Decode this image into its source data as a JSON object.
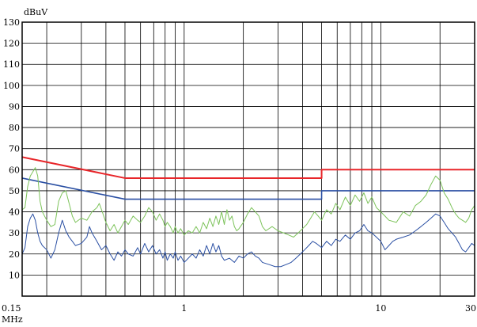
{
  "chart_data": {
    "type": "line",
    "title": "",
    "xlabel": "MHz",
    "ylabel": "dBuV",
    "x_scale": "log",
    "xlim": [
      0.15,
      30
    ],
    "ylim": [
      0,
      130
    ],
    "grid": true,
    "x_tick_labels": [
      {
        "value": 0.15,
        "label": "0.15"
      },
      {
        "value": 1,
        "label": "1"
      },
      {
        "value": 10,
        "label": "10"
      },
      {
        "value": 30,
        "label": "30"
      }
    ],
    "y_ticks": [
      10,
      20,
      30,
      40,
      50,
      60,
      70,
      80,
      90,
      100,
      110,
      120,
      130
    ],
    "series": [
      {
        "color": "#e8262a",
        "width": 2,
        "style": "limit",
        "points": [
          [
            0.15,
            66
          ],
          [
            0.5,
            56
          ],
          [
            5,
            56
          ],
          [
            5,
            60
          ],
          [
            30,
            60
          ]
        ]
      },
      {
        "color": "#2a4fa3",
        "width": 1.6,
        "style": "limit",
        "points": [
          [
            0.15,
            56
          ],
          [
            0.5,
            46
          ],
          [
            5,
            46
          ],
          [
            5,
            50
          ],
          [
            30,
            50
          ]
        ]
      },
      {
        "color": "#7dc35b",
        "width": 1,
        "style": "measured",
        "points": [
          [
            0.15,
            41
          ],
          [
            0.155,
            42
          ],
          [
            0.16,
            52
          ],
          [
            0.165,
            57
          ],
          [
            0.17,
            59
          ],
          [
            0.175,
            61
          ],
          [
            0.18,
            57
          ],
          [
            0.185,
            45
          ],
          [
            0.19,
            40
          ],
          [
            0.2,
            36
          ],
          [
            0.21,
            33
          ],
          [
            0.22,
            34
          ],
          [
            0.23,
            45
          ],
          [
            0.24,
            49
          ],
          [
            0.25,
            50
          ],
          [
            0.26,
            44
          ],
          [
            0.27,
            38
          ],
          [
            0.28,
            35
          ],
          [
            0.3,
            37
          ],
          [
            0.32,
            36
          ],
          [
            0.34,
            40
          ],
          [
            0.36,
            42
          ],
          [
            0.37,
            44
          ],
          [
            0.38,
            41
          ],
          [
            0.4,
            35
          ],
          [
            0.42,
            31
          ],
          [
            0.44,
            34
          ],
          [
            0.46,
            30
          ],
          [
            0.48,
            33
          ],
          [
            0.5,
            36
          ],
          [
            0.52,
            34
          ],
          [
            0.55,
            38
          ],
          [
            0.58,
            36
          ],
          [
            0.6,
            35
          ],
          [
            0.63,
            38
          ],
          [
            0.66,
            42
          ],
          [
            0.69,
            40
          ],
          [
            0.72,
            36
          ],
          [
            0.75,
            39
          ],
          [
            0.78,
            36
          ],
          [
            0.8,
            33
          ],
          [
            0.82,
            35
          ],
          [
            0.85,
            33
          ],
          [
            0.88,
            30
          ],
          [
            0.9,
            33
          ],
          [
            0.93,
            30
          ],
          [
            0.96,
            32
          ],
          [
            1.0,
            29
          ],
          [
            1.05,
            31
          ],
          [
            1.1,
            30
          ],
          [
            1.15,
            33
          ],
          [
            1.2,
            30
          ],
          [
            1.25,
            35
          ],
          [
            1.3,
            32
          ],
          [
            1.35,
            37
          ],
          [
            1.4,
            33
          ],
          [
            1.45,
            38
          ],
          [
            1.5,
            34
          ],
          [
            1.55,
            40
          ],
          [
            1.6,
            34
          ],
          [
            1.65,
            41
          ],
          [
            1.7,
            36
          ],
          [
            1.75,
            38
          ],
          [
            1.8,
            33
          ],
          [
            1.85,
            31
          ],
          [
            1.9,
            32
          ],
          [
            2.0,
            35
          ],
          [
            2.1,
            39
          ],
          [
            2.2,
            42
          ],
          [
            2.3,
            40
          ],
          [
            2.4,
            38
          ],
          [
            2.5,
            33
          ],
          [
            2.6,
            31
          ],
          [
            2.8,
            33
          ],
          [
            3.0,
            31
          ],
          [
            3.2,
            30
          ],
          [
            3.4,
            29
          ],
          [
            3.6,
            28
          ],
          [
            3.8,
            30
          ],
          [
            4.0,
            32
          ],
          [
            4.2,
            34
          ],
          [
            4.4,
            37
          ],
          [
            4.6,
            40
          ],
          [
            4.8,
            38
          ],
          [
            5.0,
            36
          ],
          [
            5.3,
            41
          ],
          [
            5.6,
            39
          ],
          [
            5.9,
            44
          ],
          [
            6.2,
            41
          ],
          [
            6.6,
            47
          ],
          [
            7.0,
            43
          ],
          [
            7.4,
            48
          ],
          [
            7.8,
            45
          ],
          [
            8.2,
            49
          ],
          [
            8.6,
            44
          ],
          [
            9.0,
            47
          ],
          [
            9.5,
            42
          ],
          [
            10,
            40
          ],
          [
            10.5,
            38
          ],
          [
            11,
            36
          ],
          [
            12,
            35
          ],
          [
            13,
            40
          ],
          [
            14,
            38
          ],
          [
            15,
            43
          ],
          [
            16,
            45
          ],
          [
            17,
            48
          ],
          [
            18,
            53
          ],
          [
            19,
            57
          ],
          [
            20,
            55
          ],
          [
            21,
            49
          ],
          [
            22,
            46
          ],
          [
            23,
            42
          ],
          [
            24,
            39
          ],
          [
            25,
            37
          ],
          [
            26,
            36
          ],
          [
            27,
            35
          ],
          [
            28,
            37
          ],
          [
            29,
            41
          ],
          [
            30,
            43
          ]
        ]
      },
      {
        "color": "#2a4fa3",
        "width": 1,
        "style": "measured",
        "points": [
          [
            0.15,
            20
          ],
          [
            0.155,
            23
          ],
          [
            0.16,
            33
          ],
          [
            0.165,
            37
          ],
          [
            0.17,
            39
          ],
          [
            0.175,
            36
          ],
          [
            0.18,
            30
          ],
          [
            0.185,
            26
          ],
          [
            0.19,
            24
          ],
          [
            0.2,
            22
          ],
          [
            0.21,
            18
          ],
          [
            0.22,
            22
          ],
          [
            0.23,
            30
          ],
          [
            0.24,
            36
          ],
          [
            0.25,
            31
          ],
          [
            0.26,
            28
          ],
          [
            0.27,
            26
          ],
          [
            0.28,
            24
          ],
          [
            0.3,
            25
          ],
          [
            0.32,
            28
          ],
          [
            0.33,
            33
          ],
          [
            0.34,
            30
          ],
          [
            0.36,
            26
          ],
          [
            0.38,
            22
          ],
          [
            0.4,
            24
          ],
          [
            0.42,
            20
          ],
          [
            0.44,
            17
          ],
          [
            0.46,
            21
          ],
          [
            0.48,
            19
          ],
          [
            0.5,
            22
          ],
          [
            0.52,
            20
          ],
          [
            0.55,
            19
          ],
          [
            0.58,
            23
          ],
          [
            0.6,
            20
          ],
          [
            0.63,
            25
          ],
          [
            0.66,
            21
          ],
          [
            0.69,
            24
          ],
          [
            0.72,
            20
          ],
          [
            0.75,
            22
          ],
          [
            0.78,
            18
          ],
          [
            0.8,
            21
          ],
          [
            0.82,
            17
          ],
          [
            0.85,
            20
          ],
          [
            0.88,
            18
          ],
          [
            0.9,
            21
          ],
          [
            0.93,
            17
          ],
          [
            0.96,
            19
          ],
          [
            1.0,
            16
          ],
          [
            1.05,
            18
          ],
          [
            1.1,
            20
          ],
          [
            1.15,
            18
          ],
          [
            1.2,
            22
          ],
          [
            1.25,
            19
          ],
          [
            1.3,
            24
          ],
          [
            1.35,
            20
          ],
          [
            1.4,
            25
          ],
          [
            1.45,
            21
          ],
          [
            1.5,
            24
          ],
          [
            1.55,
            19
          ],
          [
            1.6,
            17
          ],
          [
            1.7,
            18
          ],
          [
            1.8,
            16
          ],
          [
            1.9,
            19
          ],
          [
            2.0,
            18
          ],
          [
            2.1,
            20
          ],
          [
            2.2,
            21
          ],
          [
            2.3,
            19
          ],
          [
            2.4,
            18
          ],
          [
            2.5,
            16
          ],
          [
            2.7,
            15
          ],
          [
            2.9,
            14
          ],
          [
            3.1,
            14
          ],
          [
            3.3,
            15
          ],
          [
            3.5,
            16
          ],
          [
            3.7,
            18
          ],
          [
            3.9,
            20
          ],
          [
            4.1,
            22
          ],
          [
            4.3,
            24
          ],
          [
            4.5,
            26
          ],
          [
            4.7,
            25
          ],
          [
            5.0,
            23
          ],
          [
            5.3,
            26
          ],
          [
            5.6,
            24
          ],
          [
            5.9,
            27
          ],
          [
            6.2,
            26
          ],
          [
            6.6,
            29
          ],
          [
            7.0,
            27
          ],
          [
            7.4,
            30
          ],
          [
            7.8,
            31
          ],
          [
            8.2,
            34
          ],
          [
            8.6,
            31
          ],
          [
            9.0,
            30
          ],
          [
            9.5,
            28
          ],
          [
            10,
            26
          ],
          [
            10.5,
            22
          ],
          [
            11,
            24
          ],
          [
            11.5,
            26
          ],
          [
            12,
            27
          ],
          [
            13,
            28
          ],
          [
            14,
            29
          ],
          [
            15,
            31
          ],
          [
            16,
            33
          ],
          [
            17,
            35
          ],
          [
            18,
            37
          ],
          [
            19,
            39
          ],
          [
            20,
            38
          ],
          [
            21,
            35
          ],
          [
            22,
            32
          ],
          [
            23,
            30
          ],
          [
            24,
            28
          ],
          [
            25,
            25
          ],
          [
            26,
            22
          ],
          [
            27,
            21
          ],
          [
            28,
            23
          ],
          [
            29,
            25
          ],
          [
            30,
            24
          ]
        ]
      }
    ]
  }
}
